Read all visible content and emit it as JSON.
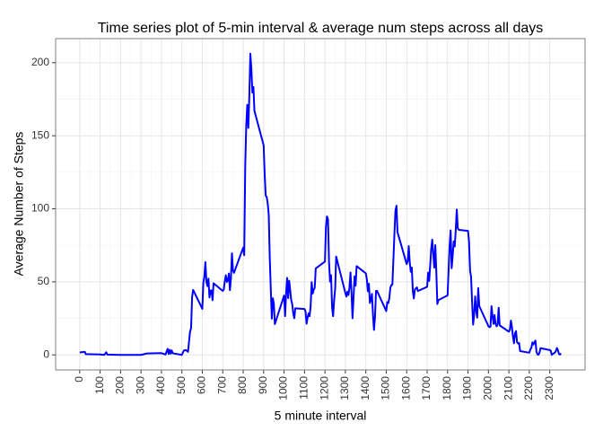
{
  "chart_data": {
    "type": "line",
    "title": "Time series plot of 5-min interval & average num steps across all days",
    "x_label": "5 minute interval",
    "y_label": "Average Number of Steps",
    "color": "#0000ff",
    "grid": true,
    "x": [
      0,
      25,
      30,
      100,
      120,
      130,
      135,
      200,
      300,
      330,
      400,
      420,
      430,
      435,
      440,
      445,
      450,
      455,
      500,
      505,
      510,
      520,
      530,
      540,
      545,
      550,
      555,
      600,
      605,
      610,
      615,
      620,
      625,
      630,
      635,
      640,
      645,
      650,
      655,
      700,
      705,
      710,
      715,
      720,
      725,
      730,
      735,
      740,
      745,
      750,
      755,
      800,
      805,
      810,
      815,
      820,
      825,
      830,
      835,
      840,
      845,
      850,
      855,
      900,
      905,
      910,
      915,
      920,
      925,
      930,
      935,
      940,
      945,
      950,
      955,
      1000,
      1005,
      1010,
      1015,
      1020,
      1025,
      1030,
      1035,
      1040,
      1045,
      1050,
      1055,
      1100,
      1105,
      1110,
      1115,
      1120,
      1125,
      1130,
      1135,
      1140,
      1145,
      1150,
      1155,
      1200,
      1205,
      1210,
      1215,
      1220,
      1225,
      1230,
      1235,
      1240,
      1245,
      1250,
      1255,
      1300,
      1305,
      1310,
      1315,
      1320,
      1325,
      1330,
      1335,
      1340,
      1345,
      1350,
      1355,
      1400,
      1405,
      1410,
      1415,
      1420,
      1425,
      1430,
      1435,
      1440,
      1445,
      1450,
      1455,
      1500,
      1505,
      1510,
      1515,
      1520,
      1525,
      1530,
      1535,
      1540,
      1545,
      1550,
      1555,
      1600,
      1605,
      1610,
      1615,
      1620,
      1625,
      1630,
      1635,
      1640,
      1645,
      1650,
      1655,
      1700,
      1705,
      1710,
      1715,
      1720,
      1725,
      1730,
      1735,
      1740,
      1745,
      1750,
      1755,
      1800,
      1805,
      1810,
      1815,
      1820,
      1825,
      1830,
      1835,
      1840,
      1845,
      1850,
      1855,
      1900,
      1905,
      1910,
      1915,
      1920,
      1925,
      1930,
      1935,
      1940,
      1945,
      1950,
      1955,
      2000,
      2005,
      2010,
      2015,
      2020,
      2025,
      2030,
      2035,
      2040,
      2045,
      2050,
      2055,
      2100,
      2105,
      2110,
      2115,
      2120,
      2125,
      2130,
      2135,
      2140,
      2145,
      2150,
      2155,
      2200,
      2205,
      2210,
      2215,
      2220,
      2225,
      2230,
      2235,
      2240,
      2245,
      2250,
      2255,
      2300,
      2305,
      2310,
      2315,
      2320,
      2325,
      2330,
      2335,
      2340,
      2345,
      2350,
      2355
    ],
    "values": [
      1.7,
      2.1,
      0.5,
      0.3,
      0,
      1.8,
      0.2,
      0,
      0,
      1,
      1.2,
      0.3,
      4.1,
      0.7,
      3.5,
      0.8,
      3.1,
      1.1,
      0,
      1.6,
      3,
      3.3,
      2.1,
      16,
      18.3,
      39.5,
      44.5,
      31.5,
      49.3,
      53.8,
      63.5,
      50,
      47.1,
      52.2,
      39.3,
      44,
      44.2,
      37.4,
      49,
      43.8,
      44.7,
      50.5,
      54.5,
      49.9,
      50.9,
      55.7,
      44.3,
      52.3,
      69.5,
      57.8,
      56.2,
      73.4,
      68.2,
      129.4,
      157.5,
      171.2,
      155.4,
      177.3,
      206.2,
      195.9,
      179.6,
      183.4,
      167,
      143.5,
      124,
      109.1,
      108.1,
      103.7,
      96,
      66.2,
      45.2,
      24.8,
      38.8,
      35,
      21.1,
      40.6,
      26.5,
      42.4,
      52.7,
      38.9,
      50.8,
      44.3,
      37.4,
      34.7,
      28.3,
      25.1,
      31.9,
      31.4,
      29.7,
      21.3,
      25.5,
      28.4,
      26.5,
      33.4,
      49.8,
      42,
      44.6,
      46,
      59.2,
      63.9,
      87.7,
      94.8,
      92.8,
      63.4,
      50.2,
      54.5,
      32.4,
      26.5,
      37.7,
      45.1,
      67.3,
      42.3,
      39.9,
      43.3,
      41,
      46.2,
      56.4,
      42.8,
      25.1,
      39.5,
      53.8,
      47.4,
      60.8,
      55.8,
      51.9,
      43.6,
      48.7,
      35.5,
      37.5,
      41.8,
      27.5,
      17.1,
      26.1,
      43.8,
      43.8,
      30,
      36.1,
      35.5,
      38.8,
      46,
      47.8,
      48.1,
      65.3,
      82.9,
      98.7,
      102.1,
      84,
      62.1,
      64.1,
      74.5,
      63.2,
      56.9,
      59.8,
      43.9,
      38.6,
      44.7,
      45.5,
      46.2,
      43.7,
      46.6,
      56.3,
      50.7,
      61.2,
      72.7,
      78.9,
      68.9,
      59.7,
      75.1,
      56.5,
      34.8,
      37.5,
      40.7,
      58,
      74.7,
      85.3,
      59.3,
      67.8,
      77.7,
      74.2,
      85.3,
      99.5,
      86.6,
      85.6,
      84.9,
      77.8,
      58,
      53.4,
      36.3,
      20.7,
      27.4,
      40,
      30.2,
      25.5,
      45.7,
      33.5,
      19.6,
      19,
      19.3,
      33.3,
      26.8,
      21.2,
      27.3,
      21.3,
      19.5,
      21.3,
      32.3,
      20.2,
      15.9,
      17.2,
      23.5,
      19.2,
      12.5,
      8,
      14.7,
      16.3,
      8.7,
      7.8,
      8.1,
      2.6,
      1.5,
      3.7,
      4.8,
      8.5,
      7.1,
      8.7,
      9.8,
      2.2,
      0.3,
      0.1,
      1.6,
      4.6,
      3.3,
      2.8,
      0,
      0.8,
      1,
      1.6,
      2.6,
      4.7,
      3.3,
      0.6,
      0.2,
      1.1
    ],
    "xlim": [
      -117.75,
      2472.75
    ],
    "xticks": [
      0,
      100,
      200,
      300,
      400,
      500,
      600,
      700,
      800,
      900,
      1000,
      1100,
      1200,
      1300,
      1400,
      1500,
      1600,
      1700,
      1800,
      1900,
      2000,
      2100,
      2200,
      2300
    ],
    "ylim": [
      -10.3,
      216.5
    ],
    "yticks": [
      0,
      50,
      100,
      150,
      200
    ]
  }
}
